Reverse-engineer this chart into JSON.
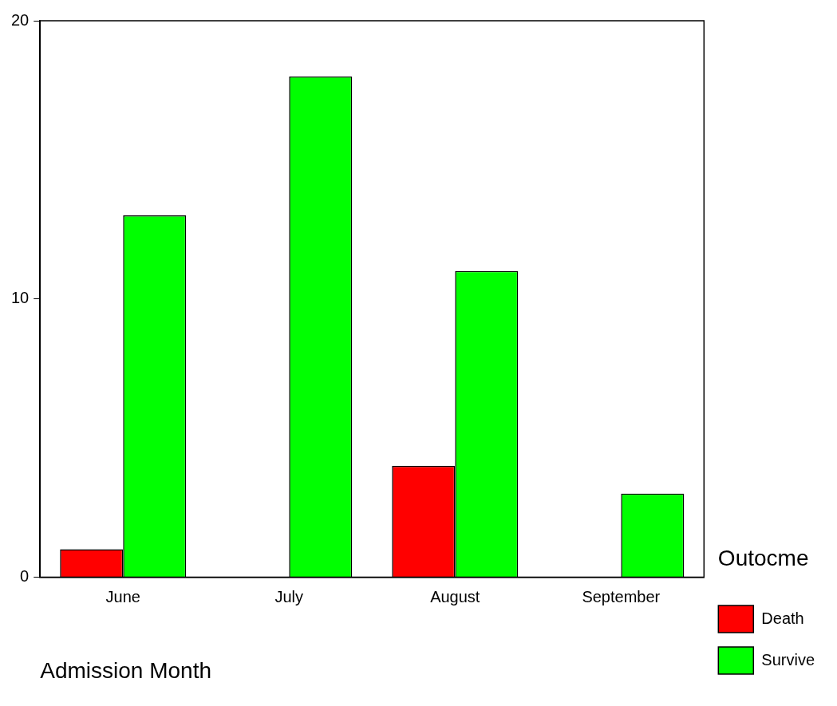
{
  "chart_data": {
    "type": "bar",
    "xlabel": "Admission Month",
    "legend_title": "Outocme",
    "categories": [
      "June",
      "July",
      "August",
      "September"
    ],
    "series": [
      {
        "name": "Death",
        "color": "#ff0000",
        "values": [
          1,
          null,
          4,
          null
        ]
      },
      {
        "name": "Survive",
        "color": "#00ff00",
        "values": [
          13,
          18,
          11,
          3
        ]
      }
    ],
    "ylim": [
      0,
      20
    ],
    "yticks": [
      0,
      10,
      20
    ],
    "grid": false,
    "legend": "bottom right"
  }
}
